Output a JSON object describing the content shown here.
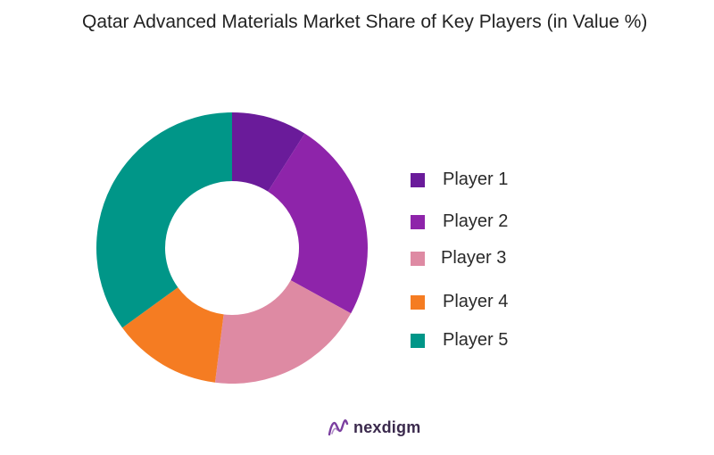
{
  "chart_data": {
    "type": "pie",
    "title": "Qatar Advanced Materials Market Share of Key Players (in Value %)",
    "donut": true,
    "categories": [
      "Player 1",
      "Player 2",
      "Player 3",
      "Player 4",
      "Player 5"
    ],
    "values": [
      9,
      24,
      19,
      13,
      35
    ],
    "colors": [
      "#6a1b9a",
      "#8e24aa",
      "#de8aa3",
      "#f57c22",
      "#009688"
    ],
    "legend_position": "right"
  },
  "brand": {
    "name": "nexdigm",
    "logo_icon": "nexdigm-logo-icon",
    "logo_color": "#7b3fa0"
  }
}
